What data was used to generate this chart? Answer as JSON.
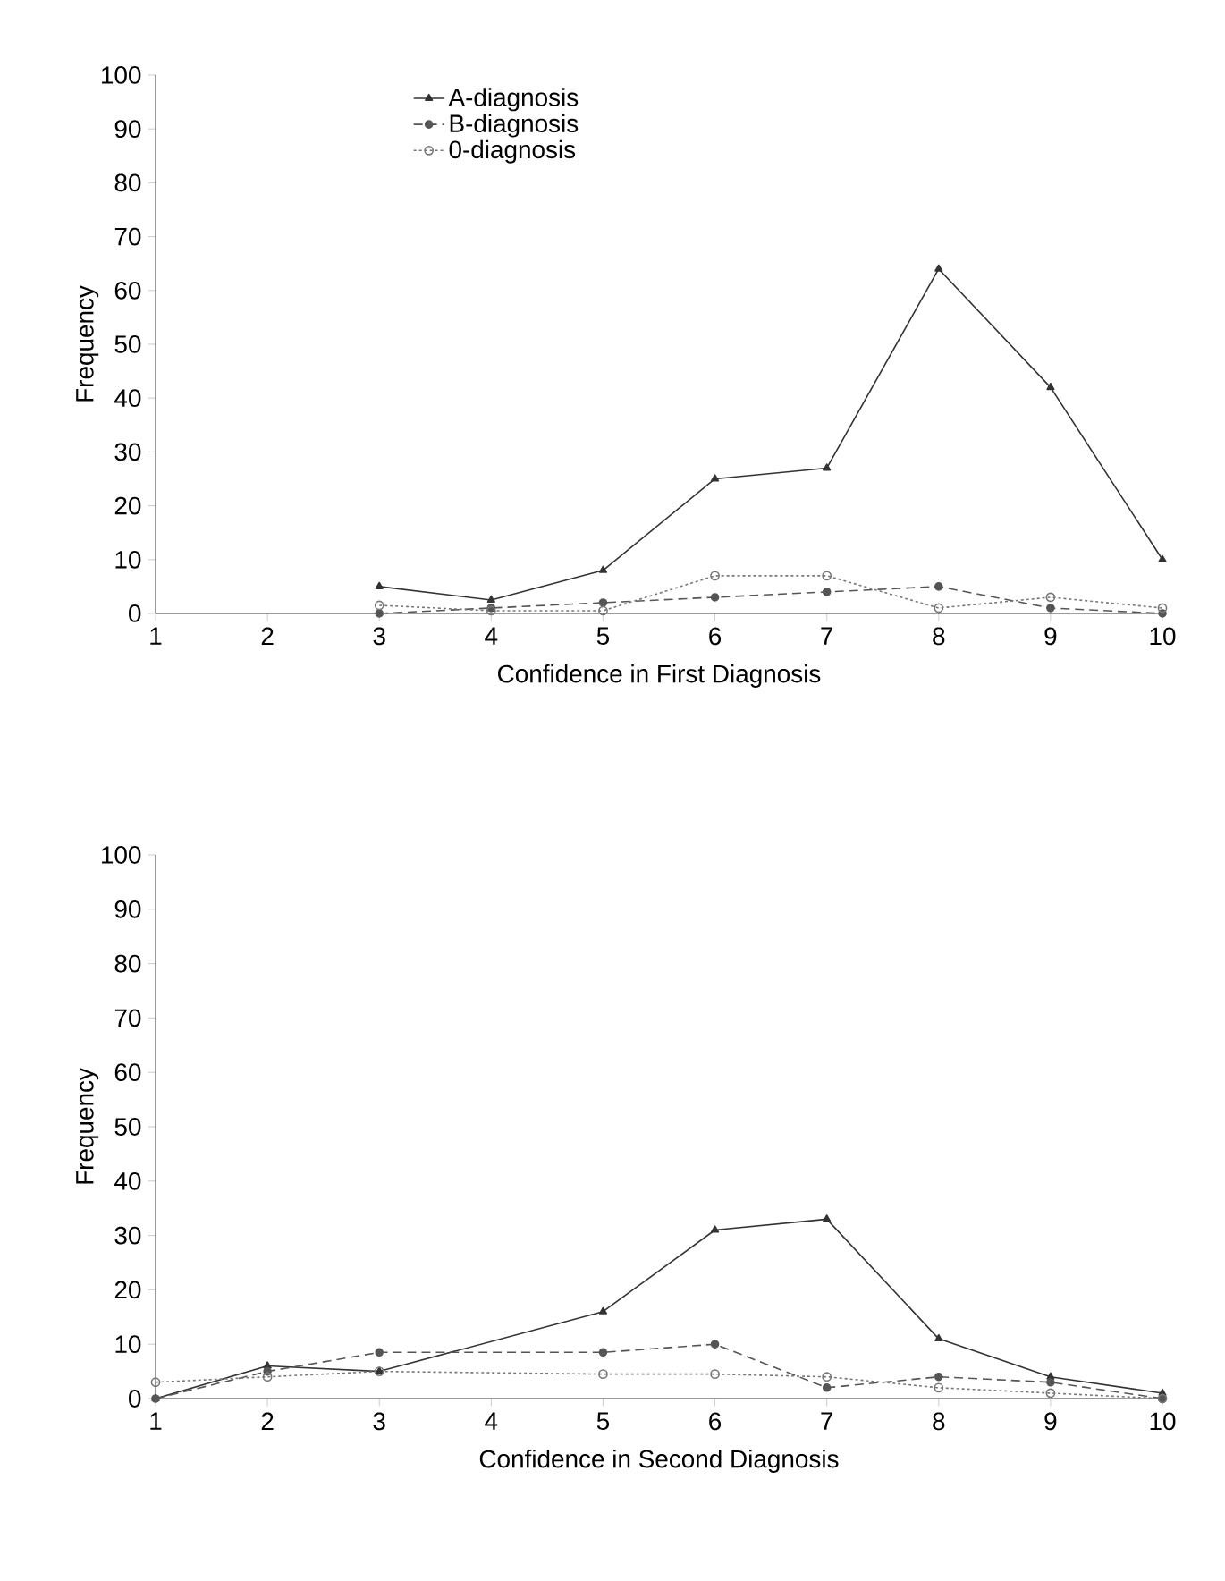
{
  "chart_data": [
    {
      "type": "line",
      "xlabel": "Confidence in First Diagnosis",
      "ylabel": "Frequency",
      "xlim": [
        1,
        10
      ],
      "xticks": [
        1,
        2,
        3,
        4,
        5,
        6,
        7,
        8,
        9,
        10
      ],
      "ylim": [
        0,
        100
      ],
      "yticks": [
        0,
        10,
        20,
        30,
        40,
        50,
        60,
        70,
        80,
        90,
        100
      ],
      "legend": "top left",
      "grid": false,
      "series": [
        {
          "name": "A-diagnosis",
          "color": "#333333",
          "marker": "triangle",
          "line_style": "solid",
          "x": [
            3,
            4,
            5,
            6,
            7,
            8,
            9,
            10
          ],
          "values": [
            5,
            2.5,
            8,
            25,
            27,
            64,
            42,
            10
          ]
        },
        {
          "name": "B-diagnosis",
          "color": "#555555",
          "marker": "circle",
          "line_style": "dashed",
          "x": [
            3,
            4,
            5,
            6,
            7,
            8,
            9,
            10
          ],
          "values": [
            0,
            1,
            2,
            3,
            4,
            5,
            1,
            0
          ]
        },
        {
          "name": "0-diagnosis",
          "color": "#777777",
          "marker": "open circle",
          "line_style": "dotted",
          "x": [
            3,
            4,
            5,
            6,
            7,
            8,
            9,
            10
          ],
          "values": [
            1.5,
            0.5,
            0.5,
            7,
            7,
            1,
            3,
            1
          ]
        }
      ]
    },
    {
      "type": "line",
      "xlabel": "Confidence in Second Diagnosis",
      "ylabel": "Frequency",
      "xlim": [
        1,
        10
      ],
      "xticks": [
        1,
        2,
        3,
        4,
        5,
        6,
        7,
        8,
        9,
        10
      ],
      "ylim": [
        0,
        100
      ],
      "yticks": [
        0,
        10,
        20,
        30,
        40,
        50,
        60,
        70,
        80,
        90,
        100
      ],
      "grid": false,
      "series": [
        {
          "color": "#333333",
          "marker": "triangle",
          "line_style": "solid",
          "x": [
            1,
            2,
            3,
            5,
            6,
            7,
            8,
            9,
            10
          ],
          "values": [
            0,
            6,
            5,
            16,
            31,
            33,
            11,
            4,
            1
          ]
        },
        {
          "color": "#555555",
          "marker": "circle",
          "line_style": "dashed",
          "x": [
            1,
            2,
            3,
            5,
            6,
            7,
            8,
            9,
            10
          ],
          "values": [
            0,
            5,
            8.5,
            8.5,
            10,
            2,
            4,
            3,
            0
          ]
        },
        {
          "color": "#777777",
          "marker": "open circle",
          "line_style": "dotted",
          "x": [
            1,
            2,
            3,
            5,
            6,
            7,
            8,
            9,
            10
          ],
          "values": [
            3,
            4,
            5,
            4.5,
            4.5,
            4,
            2,
            1,
            0
          ]
        }
      ]
    }
  ]
}
